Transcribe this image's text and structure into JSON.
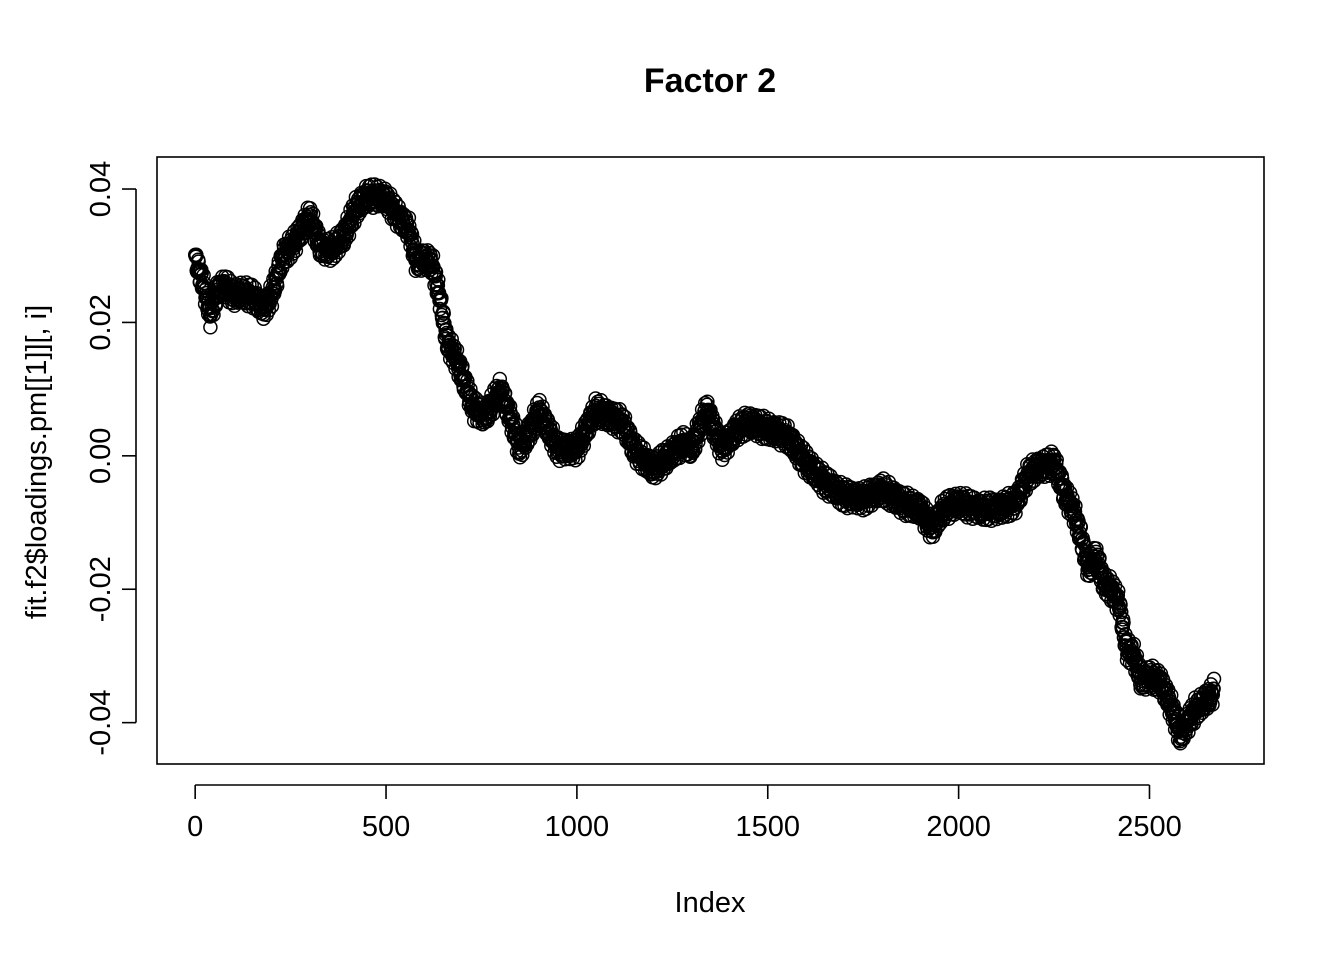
{
  "chart_data": {
    "type": "scatter",
    "title": "Factor 2",
    "xlabel": "Index",
    "ylabel": "fit.f2$loadings.pm[[1]][, i]",
    "xlim": [
      -100,
      2800
    ],
    "ylim": [
      -0.0462,
      0.0448
    ],
    "x_ticks": [
      0,
      500,
      1000,
      1500,
      2000,
      2500
    ],
    "x_tick_labels": [
      "0",
      "500",
      "1000",
      "1500",
      "2000",
      "2500"
    ],
    "y_ticks": [
      -0.04,
      -0.02,
      0.0,
      0.02,
      0.04
    ],
    "y_tick_labels": [
      "-0.04",
      "-0.02",
      "0.00",
      "0.02",
      "0.04"
    ],
    "grid": false,
    "legend": "none",
    "marker": "open-circle",
    "color": "#000000",
    "n_points": 2670,
    "x": [
      0,
      20,
      40,
      60,
      80,
      100,
      120,
      150,
      180,
      200,
      230,
      260,
      300,
      330,
      360,
      390,
      420,
      450,
      480,
      500,
      530,
      560,
      580,
      600,
      620,
      640,
      660,
      680,
      700,
      730,
      760,
      800,
      830,
      850,
      880,
      900,
      950,
      1000,
      1050,
      1080,
      1120,
      1150,
      1200,
      1250,
      1280,
      1300,
      1340,
      1380,
      1420,
      1450,
      1500,
      1550,
      1600,
      1650,
      1700,
      1750,
      1800,
      1850,
      1900,
      1930,
      1960,
      2000,
      2050,
      2080,
      2100,
      2150,
      2180,
      2200,
      2250,
      2280,
      2300,
      2320,
      2340,
      2360,
      2380,
      2400,
      2420,
      2440,
      2460,
      2480,
      2500,
      2530,
      2560,
      2580,
      2600,
      2620,
      2640,
      2660,
      2670
    ],
    "y": [
      0.0295,
      0.026,
      0.021,
      0.025,
      0.0255,
      0.024,
      0.0245,
      0.024,
      0.022,
      0.024,
      0.03,
      0.032,
      0.036,
      0.031,
      0.031,
      0.033,
      0.037,
      0.039,
      0.039,
      0.0385,
      0.036,
      0.034,
      0.029,
      0.0295,
      0.029,
      0.024,
      0.017,
      0.015,
      0.012,
      0.007,
      0.006,
      0.01,
      0.005,
      0.001,
      0.004,
      0.007,
      0.001,
      0.001,
      0.007,
      0.006,
      0.005,
      0.001,
      -0.002,
      0.0005,
      0.002,
      0.001,
      0.007,
      0.001,
      0.004,
      0.005,
      0.004,
      0.003,
      -0.001,
      -0.004,
      -0.006,
      -0.0065,
      -0.005,
      -0.007,
      -0.008,
      -0.011,
      -0.008,
      -0.007,
      -0.008,
      -0.008,
      -0.008,
      -0.007,
      -0.003,
      -0.002,
      -0.001,
      -0.006,
      -0.008,
      -0.012,
      -0.017,
      -0.015,
      -0.019,
      -0.02,
      -0.022,
      -0.029,
      -0.03,
      -0.034,
      -0.033,
      -0.034,
      -0.038,
      -0.042,
      -0.04,
      -0.038,
      -0.037,
      -0.036,
      -0.035
    ]
  }
}
